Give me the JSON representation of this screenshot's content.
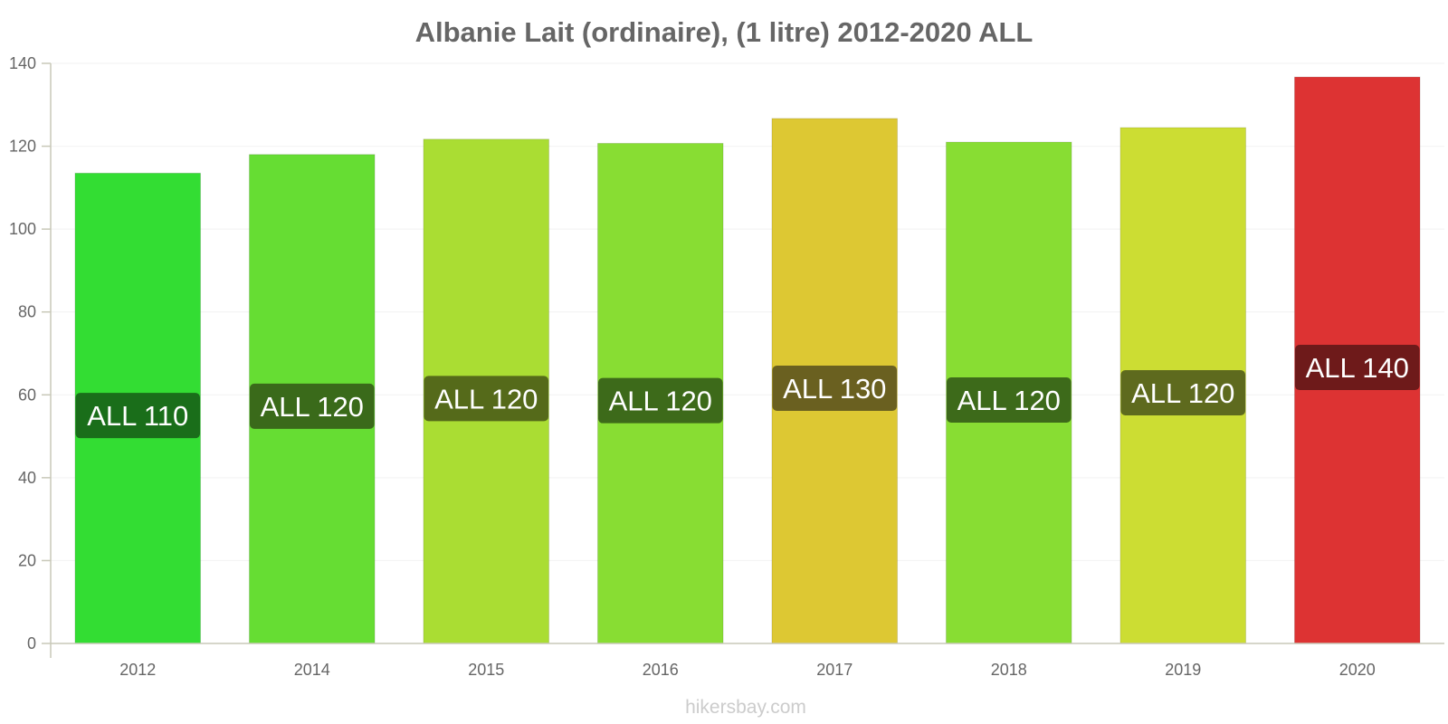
{
  "chart_data": {
    "type": "bar",
    "title": "Albanie Lait (ordinaire), (1 litre) 2012-2020 ALL",
    "xlabel": "",
    "ylabel": "",
    "ylim": [
      0,
      140
    ],
    "yticks": [
      0,
      20,
      40,
      60,
      80,
      100,
      120,
      140
    ],
    "grid": true,
    "categories": [
      "2012",
      "2014",
      "2015",
      "2016",
      "2017",
      "2018",
      "2019",
      "2020"
    ],
    "values": [
      113.5,
      118,
      121.7,
      120.7,
      126.7,
      121,
      124.5,
      136.7
    ],
    "data_labels": [
      "ALL 110",
      "ALL 120",
      "ALL 120",
      "ALL 120",
      "ALL 130",
      "ALL 120",
      "ALL 120",
      "ALL 140"
    ],
    "bar_colors": [
      "#33dd33",
      "#66dd33",
      "#aadd33",
      "#88dd33",
      "#ddc833",
      "#88dd33",
      "#ccdd33",
      "#dd3333"
    ],
    "label_box_colors": [
      "#1a6e1a",
      "#3a6a1a",
      "#556a1a",
      "#3d6a1a",
      "#6a6020",
      "#3d6a1a",
      "#5e6a1e",
      "#6e1a1a"
    ]
  },
  "footer": {
    "credit": "hikersbay.com"
  }
}
